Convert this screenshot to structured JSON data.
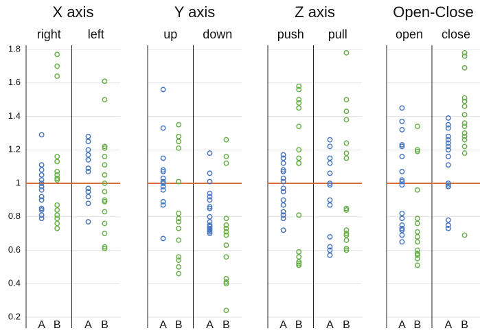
{
  "chart_data": {
    "type": "strip",
    "categories": [
      "A",
      "B"
    ],
    "colors": [
      "#4a78c0",
      "#6ab04c"
    ],
    "ylim": [
      0.2,
      1.8
    ],
    "yticks": [
      0.2,
      0.4,
      0.6,
      0.8,
      1,
      1.2,
      1.4,
      1.6,
      1.8
    ],
    "grid": true,
    "reference_line": 1,
    "reference_color": "#e0703a",
    "panels": [
      {
        "title": "X axis",
        "subpanels": [
          {
            "label": "right",
            "values": [
              [
                1.29,
                1.11,
                1.08,
                1.05,
                1.02,
                1.0,
                0.98,
                0.96,
                0.92,
                0.9,
                0.85,
                0.84,
                0.81,
                0.79
              ],
              [
                1.77,
                1.7,
                1.64,
                1.16,
                1.13,
                1.07,
                1.05,
                1.03,
                1.02,
                0.87,
                0.84,
                0.81,
                0.79,
                0.76,
                0.73
              ]
            ]
          },
          {
            "label": "left",
            "values": [
              [
                1.28,
                1.25,
                1.2,
                1.17,
                1.14,
                1.09,
                1.07,
                0.97,
                0.95,
                0.92,
                0.88,
                0.77
              ],
              [
                1.61,
                1.5,
                1.22,
                1.21,
                1.16,
                1.11,
                1.05,
                1.0,
                0.95,
                0.9,
                0.89,
                0.83,
                0.76,
                0.7,
                0.62,
                0.61
              ]
            ]
          }
        ]
      },
      {
        "title": "Y axis",
        "subpanels": [
          {
            "label": "up",
            "values": [
              [
                1.56,
                1.33,
                1.15,
                1.08,
                1.07,
                1.03,
                1.01,
                1.0,
                0.98,
                0.96,
                0.89,
                0.87,
                0.67
              ],
              [
                1.35,
                1.28,
                1.25,
                1.21,
                1.01,
                0.82,
                0.79,
                0.77,
                0.73,
                0.66,
                0.56,
                0.54,
                0.5,
                0.46
              ]
            ]
          },
          {
            "label": "down",
            "values": [
              [
                1.18,
                1.06,
                1.01,
                0.94,
                0.92,
                0.9,
                0.86,
                0.85,
                0.8,
                0.77,
                0.75,
                0.74,
                0.73,
                0.72,
                0.71,
                0.7
              ],
              [
                1.26,
                1.16,
                1.12,
                0.79,
                0.75,
                0.73,
                0.71,
                0.69,
                0.63,
                0.56,
                0.43,
                0.41,
                0.4,
                0.24
              ]
            ]
          }
        ]
      },
      {
        "title": "Z axis",
        "subpanels": [
          {
            "label": "push",
            "values": [
              [
                1.17,
                1.15,
                1.12,
                1.08,
                1.07,
                1.03,
                1.01,
                0.97,
                0.95,
                0.9,
                0.87,
                0.83,
                0.81,
                0.79,
                0.72
              ],
              [
                1.58,
                1.56,
                1.5,
                1.48,
                1.45,
                1.34,
                1.2,
                1.15,
                1.12,
                1.12,
                0.81,
                0.59,
                0.56,
                0.53,
                0.52,
                0.51
              ]
            ]
          },
          {
            "label": "pull",
            "values": [
              [
                1.26,
                1.22,
                1.15,
                1.12,
                1.06,
                1.0,
                0.99,
                0.9,
                0.87,
                0.68,
                0.62,
                0.6,
                0.57
              ],
              [
                1.78,
                1.5,
                1.43,
                1.38,
                1.24,
                1.18,
                1.15,
                0.85,
                0.84,
                0.72,
                0.7,
                0.69,
                0.66,
                0.61,
                0.6
              ]
            ]
          }
        ]
      },
      {
        "title": "Open-Close",
        "subpanels": [
          {
            "label": "open",
            "values": [
              [
                1.45,
                1.37,
                1.32,
                1.23,
                1.22,
                1.16,
                1.07,
                1.02,
                1.01,
                0.99,
                0.82,
                0.79,
                0.75,
                0.73,
                0.72,
                0.69,
                0.65
              ],
              [
                1.34,
                1.2,
                1.19,
                0.96,
                0.79,
                0.76,
                0.71,
                0.68,
                0.65,
                0.6,
                0.58,
                0.57,
                0.55,
                0.51
              ]
            ]
          },
          {
            "label": "close",
            "values": [
              [
                1.39,
                1.35,
                1.33,
                1.28,
                1.26,
                1.24,
                1.22,
                1.2,
                1.16,
                1.11,
                1.0,
                0.99,
                0.98,
                0.78,
                0.75,
                0.73
              ],
              [
                1.78,
                1.76,
                1.69,
                1.51,
                1.49,
                1.46,
                1.41,
                1.36,
                1.34,
                1.3,
                1.28,
                1.26,
                1.22,
                1.18,
                0.69
              ]
            ]
          }
        ]
      }
    ]
  }
}
